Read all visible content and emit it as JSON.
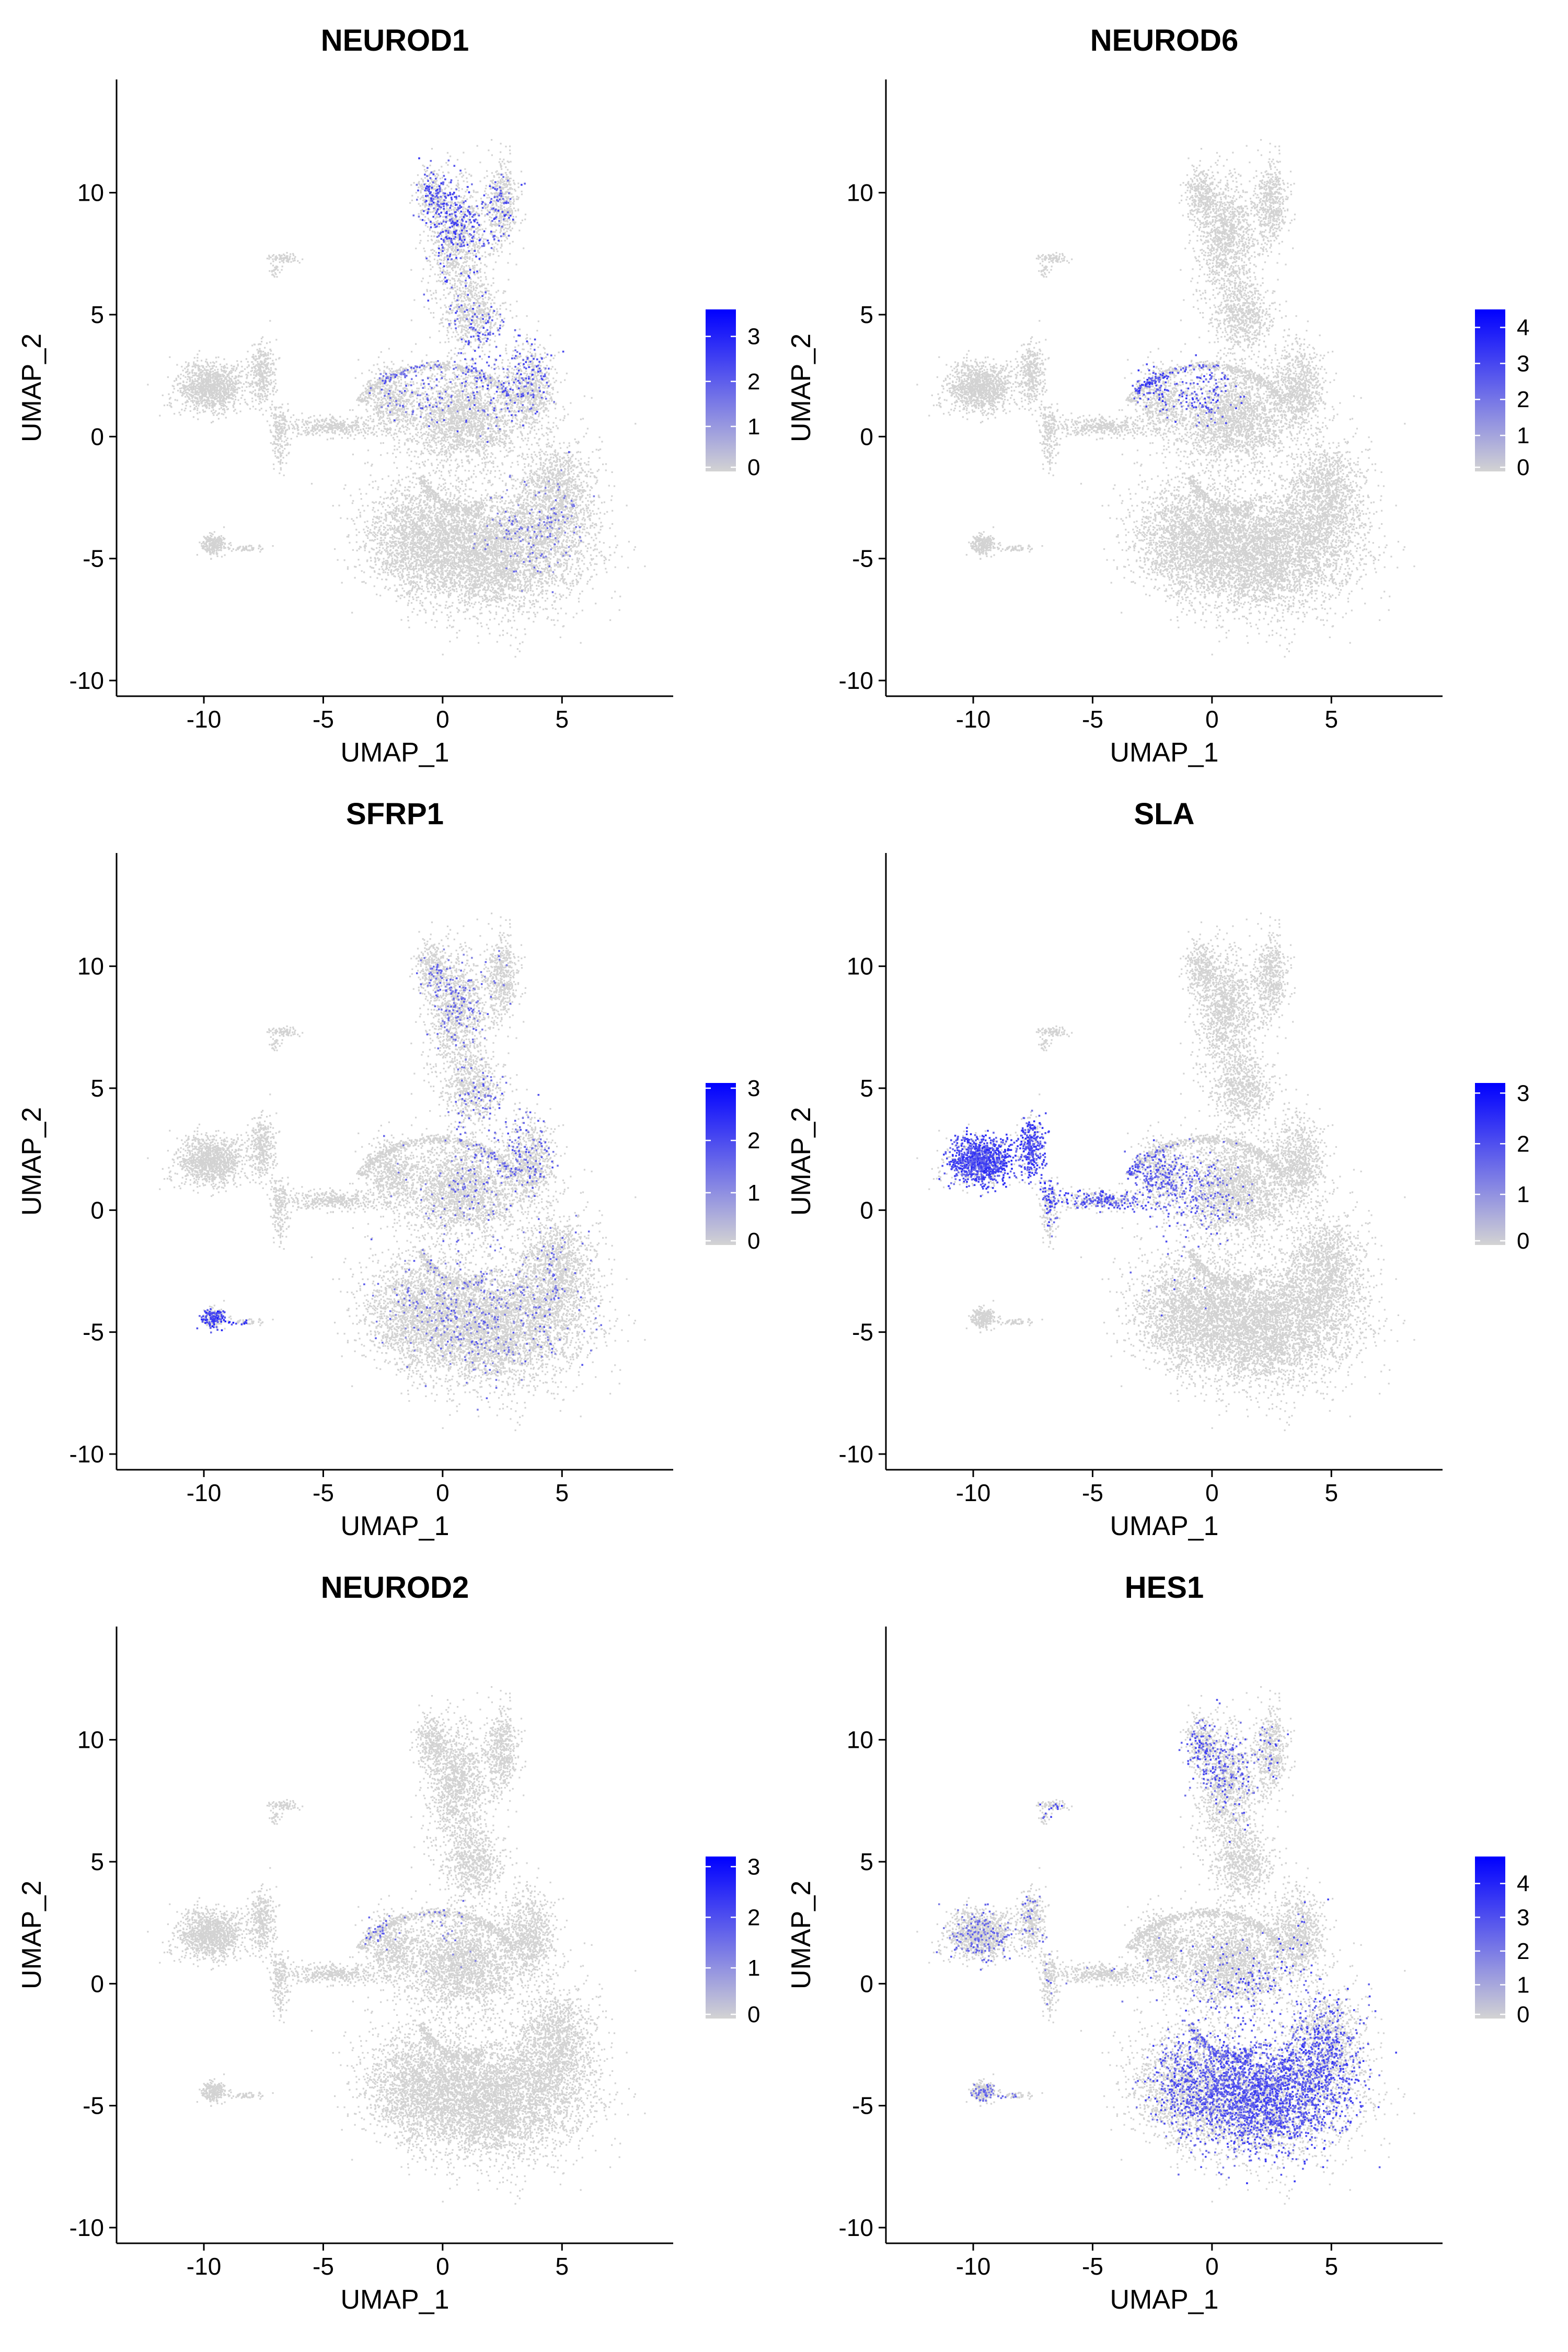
{
  "figure": {
    "layout": "3x2 grid of UMAP feature plots",
    "low_color": "#d3d3d3",
    "high_color": "#0000ff"
  },
  "chart_data": [
    {
      "type": "scatter",
      "title": "NEUROD1",
      "xlabel": "UMAP_1",
      "ylabel": "UMAP_2",
      "xlim": [
        -13,
        9
      ],
      "ylim": [
        -10,
        14
      ],
      "xticks": [
        "-10",
        "-5",
        "0",
        "5"
      ],
      "xtick_values": [
        -10,
        -5,
        0,
        5
      ],
      "yticks": [
        "-10",
        "-5",
        "0",
        "5",
        "10"
      ],
      "ytick_values": [
        -10,
        -5,
        0,
        5,
        10
      ],
      "grid": false,
      "legend": {
        "position": "right",
        "max": 3.6,
        "ticks": [
          "0",
          "1",
          "2",
          "3"
        ],
        "tick_values": [
          0,
          1,
          2,
          3
        ]
      },
      "expression_regions": [
        {
          "x": 0.5,
          "y": 9.5,
          "spread": 1.6,
          "density": 0.35,
          "level": 0.7
        },
        {
          "x": 3.0,
          "y": 3.5,
          "spread": 1.5,
          "density": 0.3,
          "level": 0.65
        },
        {
          "x": -1.0,
          "y": 2.5,
          "spread": 1.0,
          "density": 0.25,
          "level": 0.6
        },
        {
          "x": 4.0,
          "y": -3.5,
          "spread": 1.2,
          "density": 0.12,
          "level": 0.5
        }
      ]
    },
    {
      "type": "scatter",
      "title": "NEUROD6",
      "xlabel": "UMAP_1",
      "ylabel": "UMAP_2",
      "xlim": [
        -13,
        9
      ],
      "ylim": [
        -10,
        14
      ],
      "xticks": [
        "-10",
        "-5",
        "0",
        "5"
      ],
      "xtick_values": [
        -10,
        -5,
        0,
        5
      ],
      "yticks": [
        "-10",
        "-5",
        "0",
        "5",
        "10"
      ],
      "ytick_values": [
        -10,
        -5,
        0,
        5,
        10
      ],
      "grid": false,
      "legend": {
        "position": "right",
        "max": 4.5,
        "ticks": [
          "0",
          "1",
          "2",
          "3",
          "4"
        ],
        "tick_values": [
          0,
          1,
          2,
          3,
          4
        ]
      },
      "expression_regions": [
        {
          "x": -2.8,
          "y": 2.5,
          "spread": 0.6,
          "density": 0.5,
          "level": 0.75
        },
        {
          "x": -0.5,
          "y": 2.0,
          "spread": 0.7,
          "density": 0.4,
          "level": 0.7
        }
      ]
    },
    {
      "type": "scatter",
      "title": "SFRP1",
      "xlabel": "UMAP_1",
      "ylabel": "UMAP_2",
      "xlim": [
        -13,
        9
      ],
      "ylim": [
        -10,
        14
      ],
      "xticks": [
        "-10",
        "-5",
        "0",
        "5"
      ],
      "xtick_values": [
        -10,
        -5,
        0,
        5
      ],
      "yticks": [
        "-10",
        "-5",
        "0",
        "5",
        "10"
      ],
      "ytick_values": [
        -10,
        -5,
        0,
        5,
        10
      ],
      "grid": false,
      "legend": {
        "position": "right",
        "max": 3.1,
        "ticks": [
          "0",
          "1",
          "2",
          "3"
        ],
        "tick_values": [
          0,
          1,
          2,
          3
        ]
      },
      "expression_regions": [
        {
          "x": -9.5,
          "y": -4.5,
          "spread": 0.8,
          "density": 0.5,
          "level": 0.8
        },
        {
          "x": 3.0,
          "y": 3.5,
          "spread": 1.5,
          "density": 0.22,
          "level": 0.6
        },
        {
          "x": 2.0,
          "y": -3.0,
          "spread": 3.0,
          "density": 0.08,
          "level": 0.55
        },
        {
          "x": 0.0,
          "y": 9.0,
          "spread": 1.5,
          "density": 0.15,
          "level": 0.55
        }
      ]
    },
    {
      "type": "scatter",
      "title": "SLA",
      "xlabel": "UMAP_1",
      "ylabel": "UMAP_2",
      "xlim": [
        -13,
        9
      ],
      "ylim": [
        -10,
        14
      ],
      "xticks": [
        "-10",
        "-5",
        "0",
        "5"
      ],
      "xtick_values": [
        -10,
        -5,
        0,
        5
      ],
      "yticks": [
        "-10",
        "-5",
        "0",
        "5",
        "10"
      ],
      "ytick_values": [
        -10,
        -5,
        0,
        5,
        10
      ],
      "grid": false,
      "legend": {
        "position": "right",
        "max": 3.2,
        "ticks": [
          "0",
          "1",
          "2",
          "3"
        ],
        "tick_values": [
          0,
          1,
          2,
          3
        ]
      },
      "expression_regions": [
        {
          "x": -9.8,
          "y": 1.8,
          "spread": 1.6,
          "density": 0.8,
          "level": 0.75
        },
        {
          "x": -7.0,
          "y": 2.5,
          "spread": 1.4,
          "density": 0.7,
          "level": 0.75
        },
        {
          "x": -4.0,
          "y": 0.5,
          "spread": 1.5,
          "density": 0.45,
          "level": 0.65
        },
        {
          "x": -1.5,
          "y": 0.5,
          "spread": 1.2,
          "density": 0.3,
          "level": 0.6
        }
      ]
    },
    {
      "type": "scatter",
      "title": "NEUROD2",
      "xlabel": "UMAP_1",
      "ylabel": "UMAP_2",
      "xlim": [
        -13,
        9
      ],
      "ylim": [
        -10,
        14
      ],
      "xticks": [
        "-10",
        "-5",
        "0",
        "5"
      ],
      "xtick_values": [
        -10,
        -5,
        0,
        5
      ],
      "yticks": [
        "-10",
        "-5",
        "0",
        "5",
        "10"
      ],
      "ytick_values": [
        -10,
        -5,
        0,
        5,
        10
      ],
      "grid": false,
      "legend": {
        "position": "right",
        "max": 3.2,
        "ticks": [
          "0",
          "1",
          "2",
          "3"
        ],
        "tick_values": [
          0,
          1,
          2,
          3
        ]
      },
      "expression_regions": [
        {
          "x": -3.0,
          "y": 2.5,
          "spread": 0.5,
          "density": 0.2,
          "level": 0.6
        },
        {
          "x": 0.0,
          "y": 2.5,
          "spread": 0.8,
          "density": 0.08,
          "level": 0.5
        }
      ]
    },
    {
      "type": "scatter",
      "title": "HES1",
      "xlabel": "UMAP_1",
      "ylabel": "UMAP_2",
      "xlim": [
        -13,
        9
      ],
      "ylim": [
        -10,
        14
      ],
      "xticks": [
        "-10",
        "-5",
        "0",
        "5"
      ],
      "xtick_values": [
        -10,
        -5,
        0,
        5
      ],
      "yticks": [
        "-10",
        "-5",
        "0",
        "5",
        "10"
      ],
      "ytick_values": [
        -10,
        -5,
        0,
        5,
        10
      ],
      "grid": false,
      "legend": {
        "position": "right",
        "max": 4.8,
        "ticks": [
          "0",
          "1",
          "2",
          "3",
          "4"
        ],
        "tick_values": [
          0,
          1,
          2,
          3,
          4
        ]
      },
      "expression_regions": [
        {
          "x": 3.5,
          "y": -4.5,
          "spread": 2.6,
          "density": 0.45,
          "level": 0.7
        },
        {
          "x": 0.5,
          "y": -4.0,
          "spread": 2.2,
          "density": 0.3,
          "level": 0.65
        },
        {
          "x": 0.0,
          "y": 9.5,
          "spread": 1.4,
          "density": 0.3,
          "level": 0.65
        },
        {
          "x": -6.0,
          "y": 7.0,
          "spread": 0.8,
          "density": 0.4,
          "level": 0.7
        },
        {
          "x": -9.5,
          "y": 1.5,
          "spread": 2.0,
          "density": 0.15,
          "level": 0.55
        },
        {
          "x": -9.0,
          "y": -4.5,
          "spread": 0.8,
          "density": 0.2,
          "level": 0.55
        }
      ]
    }
  ]
}
